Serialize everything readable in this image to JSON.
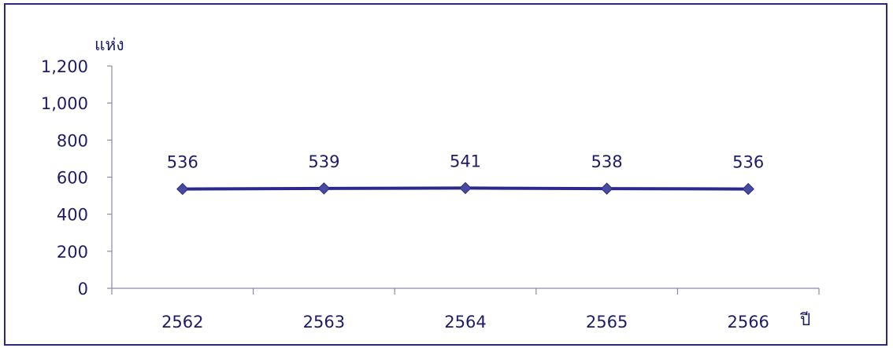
{
  "chart_data": {
    "type": "line",
    "title": "",
    "xlabel": "ปี",
    "ylabel": "แห่ง",
    "categories": [
      "2562",
      "2563",
      "2564",
      "2565",
      "2566"
    ],
    "series": [
      {
        "values": [
          536,
          539,
          541,
          538,
          536
        ],
        "data_labels": [
          "536",
          "539",
          "541",
          "538",
          "536"
        ]
      }
    ],
    "ylim": [
      0,
      1200
    ],
    "yticks": [
      0,
      200,
      400,
      600,
      800,
      1000,
      1200
    ],
    "ytick_labels": [
      "0",
      "200",
      "400",
      "600",
      "800",
      "1,000",
      "1,200"
    ],
    "grid": false,
    "legend": "none",
    "colors": {
      "line": "#2a2a8c",
      "marker": "#4a4a9e",
      "axis": "#8a8aa8",
      "text": "#1c1c6b",
      "border": "#2a2a7e"
    }
  }
}
